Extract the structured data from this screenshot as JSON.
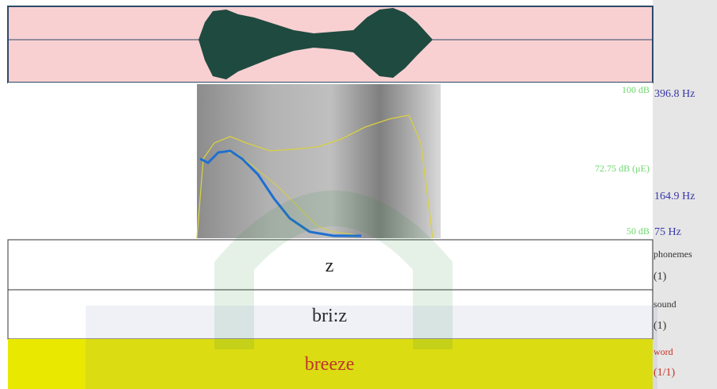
{
  "spectrogram": {
    "intensity_max": "100 dB",
    "pitch_max": "396.8 Hz",
    "intensity_cursor": "72.75 dB (μE)",
    "pitch_cursor": "164.9 Hz",
    "intensity_min": "50 dB",
    "pitch_min": "75 Hz"
  },
  "tiers": [
    {
      "label": "z",
      "name": "phonemes",
      "count": "(1)"
    },
    {
      "label": "bri:z",
      "name": "sound",
      "count": "(1)"
    },
    {
      "label": "breeze",
      "name": "word",
      "count": "(1/1)"
    }
  ]
}
